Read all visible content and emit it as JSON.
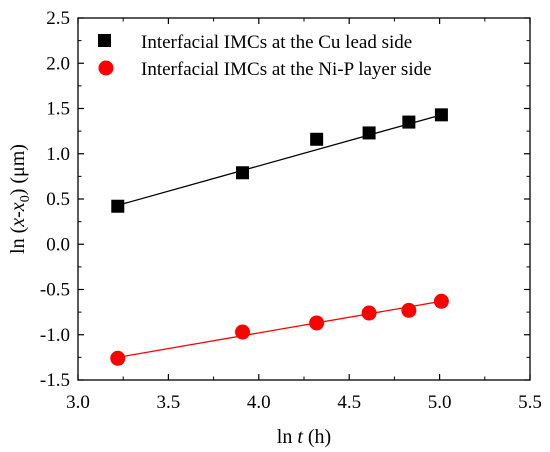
{
  "chart_data": {
    "type": "scatter",
    "xlabel": {
      "prefix": "ln ",
      "var": "t",
      "suffix": " (h)"
    },
    "ylabel": {
      "prefix": "ln (",
      "var1": "x",
      "dash": "-",
      "var2": "x",
      "sub": "0",
      "suffix": ") (μm)"
    },
    "xlim": [
      3.0,
      5.5
    ],
    "ylim": [
      -1.5,
      2.5
    ],
    "xticks": [
      "3.0",
      "3.5",
      "4.0",
      "4.5",
      "5.0",
      "5.5"
    ],
    "yticks": [
      "-1.5",
      "-1.0",
      "-0.5",
      "0.0",
      "0.5",
      "1.0",
      "1.5",
      "2.0",
      "2.5"
    ],
    "grid": false,
    "legend_position": "top-left",
    "series": [
      {
        "name": "Interfacial IMCs at the Cu lead side",
        "marker": "square",
        "color": "#000000",
        "x": [
          3.22,
          3.91,
          4.32,
          4.61,
          4.83,
          5.01
        ],
        "y": [
          0.42,
          0.79,
          1.16,
          1.23,
          1.35,
          1.43
        ],
        "fit": {
          "x": [
            3.22,
            5.01
          ],
          "y": [
            0.43,
            1.43
          ]
        }
      },
      {
        "name": "Interfacial IMCs at the Ni-P layer side",
        "marker": "circle",
        "color": "#ff0000",
        "x": [
          3.22,
          3.91,
          4.32,
          4.61,
          4.83,
          5.01
        ],
        "y": [
          -1.26,
          -0.97,
          -0.87,
          -0.76,
          -0.73,
          -0.63
        ],
        "fit": {
          "x": [
            3.22,
            5.01
          ],
          "y": [
            -1.25,
            -0.63
          ]
        }
      }
    ]
  }
}
